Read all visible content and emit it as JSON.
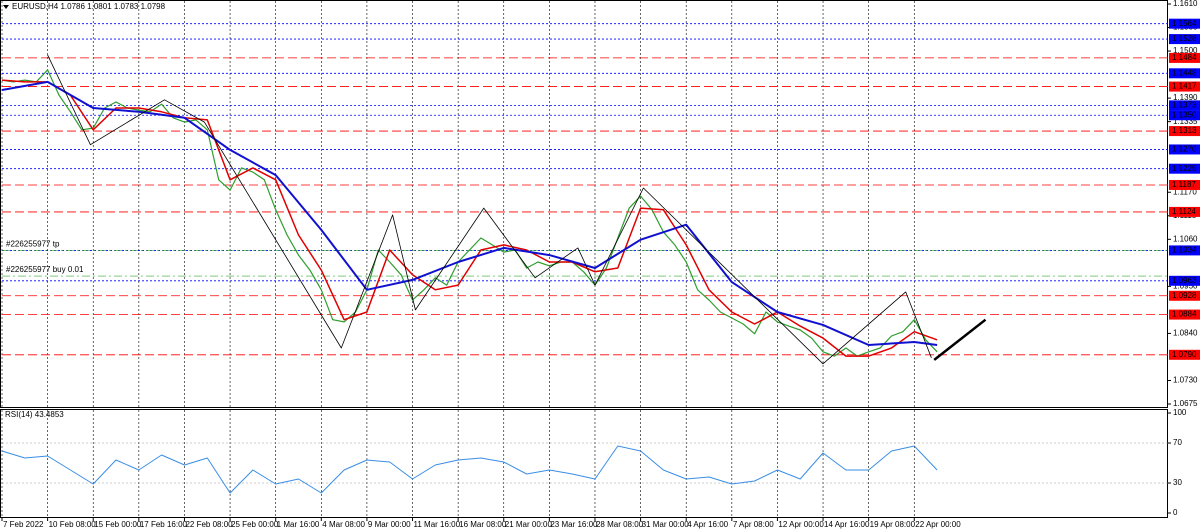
{
  "chart_data": [
    {
      "type": "price",
      "title": "EURUSD,H4",
      "ohlc": [
        1.0786,
        1.0801,
        1.0783,
        1.0798
      ],
      "xlim": [
        0,
        409
      ],
      "ylim": [
        1.0675,
        1.161
      ],
      "yticks": [
        {
          "value": 1.161,
          "label": "1.1610"
        },
        1.1555,
        {
          "value": 1.15,
          "label": "1.1500"
        },
        {
          "value": 1.139,
          "label": "1.1390"
        },
        1.1335,
        {
          "value": 1.117,
          "label": "1.1170"
        },
        1.1115,
        {
          "value": 1.106,
          "label": "1.1060"
        },
        {
          "value": 1.095,
          "label": "1.0950"
        },
        {
          "value": 1.084,
          "label": "1.0840"
        },
        {
          "value": 1.073,
          "label": "1.0730"
        },
        1.0675
      ],
      "xticks": [
        {
          "value": 0,
          "label": "7 Feb 2022"
        },
        {
          "value": 16,
          "label": "10 Feb 08:00"
        },
        {
          "value": 32,
          "label": "15 Feb 00:00"
        },
        {
          "value": 48,
          "label": "17 Feb 16:00"
        },
        {
          "value": 64,
          "label": "22 Feb 08:00"
        },
        {
          "value": 80,
          "label": "25 Feb 00:00"
        },
        {
          "value": 96,
          "label": "1 Mar 16:00"
        },
        {
          "value": 112,
          "label": "4 Mar 08:00"
        },
        {
          "value": 128,
          "label": "9 Mar 00:00"
        },
        {
          "value": 144,
          "label": "11 Mar 16:00"
        },
        {
          "value": 160,
          "label": "16 Mar 08:00"
        },
        {
          "value": 176,
          "label": "21 Mar 00:00"
        },
        {
          "value": 192,
          "label": "23 Mar 16:00"
        },
        {
          "value": 208,
          "label": "28 Mar 08:00"
        },
        {
          "value": 224,
          "label": "31 Mar 00:00"
        },
        {
          "value": 240,
          "label": "4 Apr 16:00"
        },
        {
          "value": 256,
          "label": "7 Apr 08:00"
        },
        {
          "value": 272,
          "label": "12 Apr 00:00"
        },
        {
          "value": 288,
          "label": "14 Apr 16:00"
        },
        {
          "value": 304,
          "label": "19 Apr 08:00"
        },
        {
          "value": 320,
          "label": "22 Apr 00:00"
        }
      ],
      "grid": true,
      "levels": [
        {
          "value": 1.1564,
          "color": "#0000ff",
          "style": "dotted"
        },
        {
          "value": 1.1528,
          "color": "#0000ff",
          "style": "dotted"
        },
        {
          "value": 1.1484,
          "color": "#ff0000",
          "style": "dashed"
        },
        {
          "value": 1.1448,
          "color": "#0000ff",
          "style": "dotted"
        },
        {
          "value": 1.1417,
          "color": "#ff0000",
          "style": "dashed"
        },
        {
          "value": 1.1373,
          "color": "#0000ff",
          "style": "dotted"
        },
        {
          "value": 1.135,
          "label": "1.1350",
          "color": "#0000ff",
          "style": "dotted"
        },
        {
          "value": 1.1313,
          "color": "#ff0000",
          "style": "dashed"
        },
        {
          "value": 1.127,
          "label": "1.1270",
          "color": "#0000ff",
          "style": "dotted"
        },
        {
          "value": 1.1225,
          "color": "#0000ff",
          "style": "dotted"
        },
        {
          "value": 1.1187,
          "color": "#ff0000",
          "style": "dashed"
        },
        {
          "value": 1.1124,
          "color": "#ff0000",
          "style": "dashed"
        },
        {
          "value": 1.1034,
          "color": "#0000ff",
          "style": "dotted"
        },
        {
          "value": 1.0963,
          "color": "#0000ff",
          "style": "dotted"
        },
        {
          "value": 1.0928,
          "color": "#ff0000",
          "style": "dashed"
        },
        {
          "value": 1.0884,
          "color": "#ff0000",
          "style": "dashed"
        },
        {
          "value": 1.079,
          "label": "1.0790",
          "color": "#ff0000",
          "style": "dashed"
        }
      ],
      "orders": [
        {
          "label": "#226255977 tp",
          "value": 1.1034
        },
        {
          "label": "#226255977 buy 0.01",
          "value": 1.0974
        }
      ],
      "series": [
        {
          "color": "#2e9e2e",
          "width": 1.2,
          "x": [
            0,
            4,
            8,
            12,
            16,
            20,
            24,
            28,
            32,
            36,
            40,
            44,
            48,
            52,
            56,
            60,
            64,
            68,
            72,
            76,
            80,
            84,
            88,
            92,
            96,
            100,
            104,
            108,
            112,
            116,
            120,
            124,
            128,
            132,
            136,
            140,
            144,
            148,
            152,
            156,
            160,
            164,
            168,
            172,
            176,
            180,
            184,
            188,
            192,
            196,
            200,
            204,
            208,
            212,
            216,
            220,
            224,
            228,
            232,
            236,
            240,
            244,
            248,
            252,
            256,
            260,
            264,
            268,
            272,
            276,
            280,
            284,
            288,
            292,
            296,
            300,
            304,
            308,
            312,
            316,
            320,
            324,
            328
          ],
          "values": [
            1.1432,
            1.1428,
            1.1432,
            1.1428,
            1.1456,
            1.1397,
            1.1358,
            1.1316,
            1.132,
            1.1367,
            1.1381,
            1.1367,
            1.1362,
            1.1358,
            1.1376,
            1.1344,
            1.1334,
            1.1339,
            1.1316,
            1.1199,
            1.1175,
            1.1227,
            1.1217,
            1.1199,
            1.1129,
            1.107,
            1.1023,
            1.0988,
            1.0942,
            1.0872,
            1.0867,
            1.089,
            1.0942,
            1.1035,
            1.1007,
            1.0977,
            1.0918,
            1.0942,
            1.097,
            1.0953,
            1.1007,
            1.1035,
            1.1063,
            1.1047,
            1.103,
            1.1035,
            1.0993,
            1.1007,
            1.0998,
            1.1007,
            1.1007,
            1.0984,
            1.0953,
            1.0993,
            1.1063,
            1.1133,
            1.1161,
            1.1129,
            1.1077,
            1.1047,
            1.1007,
            1.0942,
            1.0918,
            1.089,
            1.0876,
            1.0862,
            1.0839,
            1.089,
            1.0867,
            1.0857,
            1.0848,
            1.0829,
            1.0797,
            1.0787,
            1.0806,
            1.0787,
            1.0797,
            1.0806,
            1.0834,
            1.0844,
            1.0872,
            1.0825,
            1.0797
          ]
        },
        {
          "color": "#e00000",
          "width": 1.5,
          "x": [
            0,
            8,
            16,
            24,
            32,
            40,
            48,
            56,
            64,
            72,
            80,
            88,
            96,
            104,
            112,
            120,
            128,
            136,
            144,
            152,
            160,
            168,
            176,
            184,
            192,
            200,
            208,
            216,
            224,
            232,
            240,
            248,
            256,
            264,
            272,
            280,
            288,
            296,
            304,
            312,
            320,
            328
          ],
          "values": [
            1.1432,
            1.1428,
            1.1428,
            1.1397,
            1.1316,
            1.1367,
            1.1367,
            1.1358,
            1.1344,
            1.1339,
            1.1199,
            1.1227,
            1.1199,
            1.107,
            1.0988,
            1.0872,
            1.089,
            1.1035,
            1.0977,
            1.0942,
            1.0953,
            1.1035,
            1.1047,
            1.1035,
            1.1007,
            1.1007,
            1.0984,
            1.0993,
            1.1133,
            1.1129,
            1.1047,
            1.0942,
            1.089,
            1.0862,
            1.089,
            1.0857,
            1.0829,
            1.0787,
            1.0787,
            1.0806,
            1.0844,
            1.0825
          ]
        },
        {
          "color": "#1010d0",
          "width": 2,
          "x": [
            0,
            16,
            32,
            48,
            64,
            80,
            96,
            112,
            128,
            144,
            160,
            176,
            192,
            208,
            224,
            240,
            256,
            272,
            288,
            304,
            320,
            328
          ],
          "values": [
            1.1409,
            1.1428,
            1.1367,
            1.1358,
            1.1344,
            1.1269,
            1.121,
            1.1082,
            1.0942,
            1.0965,
            1.1007,
            1.104,
            1.1023,
            1.0993,
            1.1059,
            1.1094,
            1.096,
            1.089,
            1.086,
            1.0813,
            1.082,
            1.0813
          ]
        },
        {
          "color": "#000000",
          "width": 0.8,
          "x": [
            16,
            31,
            57,
            71,
            119,
            137,
            145,
            169,
            187,
            202,
            208,
            225,
            288,
            317,
            326
          ],
          "values": [
            1.1491,
            1.1281,
            1.1386,
            1.1334,
            1.0806,
            1.1117,
            1.0895,
            1.1133,
            1.097,
            1.104,
            1.0953,
            1.118,
            1.0769,
            1.0937,
            1.0783
          ]
        },
        {
          "color": "#000000",
          "width": 2.5,
          "x": [
            327,
            345
          ],
          "values": [
            1.0778,
            1.0872
          ]
        }
      ]
    },
    {
      "type": "rsi",
      "title": "RSI(14)",
      "value": 43.4853,
      "xlim": [
        0,
        409
      ],
      "ylim": [
        0,
        100
      ],
      "yticks": [
        100,
        70,
        30,
        0
      ],
      "levels": [
        70,
        30
      ],
      "series": [
        {
          "color": "#3a8ee6",
          "width": 1,
          "x": [
            0,
            8,
            16,
            24,
            32,
            40,
            48,
            56,
            64,
            72,
            80,
            88,
            96,
            104,
            112,
            120,
            128,
            136,
            144,
            152,
            160,
            168,
            176,
            184,
            192,
            200,
            208,
            216,
            224,
            232,
            240,
            248,
            256,
            264,
            272,
            280,
            288,
            296,
            304,
            312,
            320,
            328
          ],
          "values": [
            62,
            55,
            57,
            43,
            29,
            53,
            43,
            58,
            48,
            55,
            20,
            43,
            29,
            34,
            20,
            43,
            53,
            51,
            34,
            48,
            53,
            55,
            51,
            39,
            43,
            39,
            34,
            67,
            62,
            43,
            34,
            36,
            29,
            32,
            43,
            34,
            60,
            43,
            43,
            62,
            67,
            43
          ]
        }
      ]
    }
  ]
}
